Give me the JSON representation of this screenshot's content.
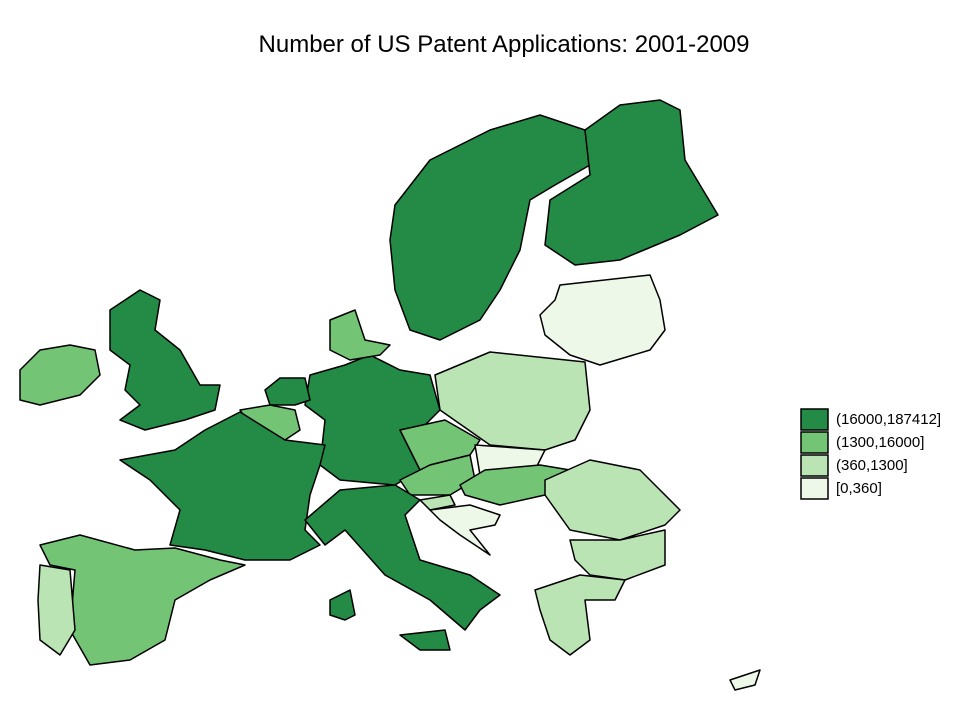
{
  "title": "Number of US Patent Applications: 2001-2009",
  "legend": {
    "items": [
      {
        "label": "(16000,187412]",
        "color": "#238b45"
      },
      {
        "label": "(1300,16000]",
        "color": "#74c476"
      },
      {
        "label": "(360,1300]",
        "color": "#bae4b3"
      },
      {
        "label": "[0,360]",
        "color": "#edf8e9"
      }
    ]
  }
}
